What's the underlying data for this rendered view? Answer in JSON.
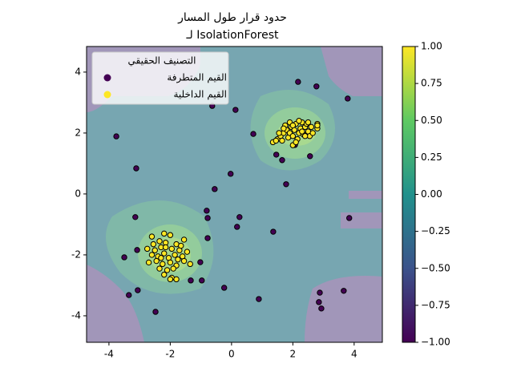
{
  "chart_data": {
    "type": "scatter",
    "title": [
      "حدود قرار طول المسار",
      "لـ IsolationForest"
    ],
    "xlim": [
      -4.73,
      4.92
    ],
    "ylim": [
      -4.87,
      4.84
    ],
    "xticks": [
      -4,
      -2,
      0,
      2,
      4
    ],
    "yticks": [
      -4,
      -2,
      0,
      2,
      4
    ],
    "legend_title": "التصنيف الحقيقي",
    "legend_position": "upper left",
    "series": [
      {
        "name": "القيم المتطرفة",
        "color": "#440154",
        "x": [
          2.17,
          2.77,
          3.79,
          -3.76,
          -0.63,
          0.13,
          0.71,
          -3.11,
          -0.03,
          -0.55,
          1.78,
          -3.14,
          -0.81,
          -0.78,
          0.26,
          0.18,
          1.36,
          3.84,
          -0.78,
          -3.5,
          -3.08,
          -1.02,
          -1.33,
          -0.97,
          -3.06,
          -3.35,
          -2.48,
          -0.24,
          0.89,
          2.88,
          3.66,
          2.85,
          2.93,
          1.46,
          1.65,
          2.56,
          2.07
        ],
        "y": [
          3.68,
          3.53,
          3.13,
          1.89,
          2.89,
          2.76,
          1.97,
          0.84,
          0.66,
          0.16,
          0.32,
          -0.76,
          -0.55,
          -0.79,
          -0.76,
          -1.08,
          -1.24,
          -0.79,
          -1.45,
          -2.08,
          -1.84,
          -2.24,
          -2.84,
          -2.84,
          -3.16,
          -3.32,
          -3.87,
          -3.08,
          -3.45,
          -3.24,
          -3.18,
          -3.55,
          -3.76,
          1.29,
          1.11,
          1.24,
          1.61
        ]
      },
      {
        "name": "القيم الداخلية",
        "color": "#fde725",
        "x": [
          1.35,
          1.5,
          1.6,
          1.7,
          1.65,
          1.8,
          1.75,
          1.85,
          1.9,
          1.95,
          2.0,
          2.05,
          2.1,
          2.15,
          2.2,
          2.25,
          2.3,
          2.35,
          2.4,
          2.45,
          2.5,
          2.55,
          2.6,
          2.8,
          2.8,
          2.8,
          2.0,
          1.9,
          2.1,
          2.3,
          1.55,
          2.65,
          2.4,
          2.2,
          1.7,
          1.45,
          2.0,
          2.5,
          -2.6,
          -2.2,
          -2.0,
          -1.55,
          -2.35,
          -2.15,
          -1.8,
          -2.75,
          -2.5,
          -2.3,
          -1.95,
          -1.7,
          -1.45,
          -2.6,
          -2.4,
          -2.2,
          -2.05,
          -1.85,
          -1.6,
          -1.35,
          -2.7,
          -2.45,
          -2.25,
          -2.0,
          -1.8,
          -1.55,
          -2.35,
          -2.1,
          -1.9,
          -2.2,
          -1.95,
          -1.8,
          -2.0,
          -2.15,
          -1.75,
          -2.55,
          -2.3,
          -1.65
        ],
        "y": [
          1.7,
          1.8,
          1.9,
          2.0,
          1.75,
          2.1,
          2.25,
          1.85,
          2.0,
          2.2,
          1.9,
          2.1,
          2.3,
          1.8,
          2.0,
          2.15,
          2.35,
          1.95,
          2.2,
          2.3,
          2.05,
          1.9,
          2.2,
          2.3,
          2.15,
          2.25,
          1.6,
          2.35,
          1.7,
          2.05,
          2.0,
          2.0,
          1.9,
          2.4,
          2.15,
          1.75,
          2.25,
          2.35,
          -1.4,
          -1.3,
          -1.35,
          -1.5,
          -1.55,
          -1.6,
          -1.65,
          -1.8,
          -1.85,
          -1.75,
          -1.8,
          -1.85,
          -1.9,
          -2.0,
          -2.05,
          -1.95,
          -2.1,
          -2.0,
          -2.05,
          -2.3,
          -2.25,
          -2.2,
          -2.3,
          -2.25,
          -2.35,
          -2.2,
          -2.45,
          -2.5,
          -2.45,
          -2.65,
          -2.75,
          -2.8,
          -2.8,
          -1.75,
          -2.15,
          -1.65,
          -2.1,
          -1.7
        ]
      }
    ],
    "colorbar": {
      "lim": [
        -1,
        1
      ],
      "colors": [
        "#440154",
        "#3b528b",
        "#21918c",
        "#5ec962",
        "#fde725"
      ],
      "ticks": [
        {
          "value": -1,
          "label": "−1.00"
        },
        {
          "value": -0.75,
          "label": "−0.75"
        },
        {
          "value": -0.5,
          "label": "−0.50"
        },
        {
          "value": -0.25,
          "label": "−0.25"
        },
        {
          "value": 0,
          "label": "0.00"
        },
        {
          "value": 0.25,
          "label": "0.25"
        },
        {
          "value": 0.5,
          "label": "0.50"
        },
        {
          "value": 0.75,
          "label": "0.75"
        },
        {
          "value": 1,
          "label": "1.00"
        }
      ]
    }
  }
}
